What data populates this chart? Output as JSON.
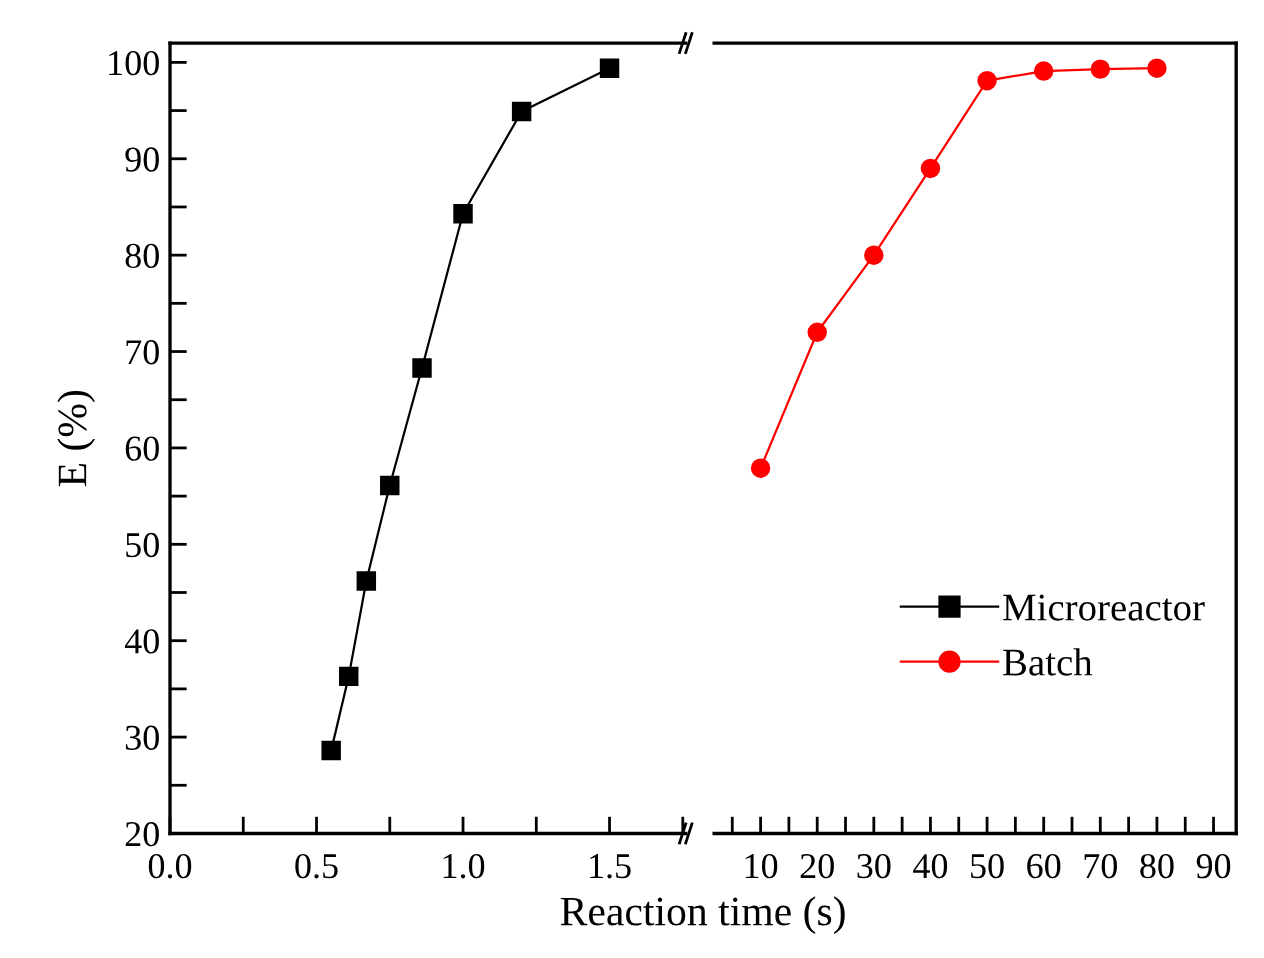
{
  "chart_data": [
    {
      "type": "line",
      "ylabel": "E (%)",
      "xlabel": "Reaction time (s)",
      "xlim": [
        0,
        1.76
      ],
      "ylim": [
        20,
        102
      ],
      "xticks": [
        {
          "value": 0,
          "label": "0.0"
        },
        {
          "value": 0.25,
          "label": null
        },
        0.5,
        {
          "value": 0.75,
          "label": null
        },
        {
          "value": 1,
          "label": "1.0"
        },
        {
          "value": 1.25,
          "label": null
        },
        1.5,
        {
          "value": 1.75,
          "label": null
        }
      ],
      "yticks": [
        20,
        {
          "value": 25,
          "label": null
        },
        30,
        {
          "value": 35,
          "label": null
        },
        40,
        {
          "value": 45,
          "label": null
        },
        50,
        {
          "value": 55,
          "label": null
        },
        60,
        {
          "value": 65,
          "label": null
        },
        70,
        {
          "value": 75,
          "label": null
        },
        80,
        {
          "value": 85,
          "label": null
        },
        90,
        {
          "value": 95,
          "label": null
        },
        100
      ],
      "marker": "square",
      "grid": false,
      "series": [
        {
          "name": "Microreactor",
          "color": "#000000",
          "x": [
            0.55,
            0.61,
            0.67,
            0.75,
            0.86,
            1.0,
            1.2,
            1.5
          ],
          "values": [
            28.6,
            36.3,
            46.2,
            56.1,
            68.3,
            84.3,
            94.9,
            99.4
          ]
        }
      ]
    },
    {
      "type": "line",
      "xlim": [
        1.8,
        94
      ],
      "ylim": [
        20,
        102
      ],
      "tick_labels": "x",
      "xticks": [
        {
          "value": 5,
          "label": null
        },
        10,
        {
          "value": 15,
          "label": null
        },
        20,
        {
          "value": 25,
          "label": null
        },
        30,
        {
          "value": 35,
          "label": null
        },
        40,
        {
          "value": 45,
          "label": null
        },
        50,
        {
          "value": 55,
          "label": null
        },
        60,
        {
          "value": 65,
          "label": null
        },
        70,
        {
          "value": 75,
          "label": null
        },
        80,
        {
          "value": 85,
          "label": null
        },
        90
      ],
      "marker": "circle",
      "grid": false,
      "legend": "lower right",
      "series": [
        {
          "name": "Batch",
          "color": "#ff0000",
          "x": [
            10,
            20,
            30,
            40,
            50,
            60,
            70,
            80
          ],
          "values": [
            57.9,
            72.0,
            80.0,
            89.0,
            98.1,
            99.1,
            99.3,
            99.4
          ]
        }
      ]
    }
  ]
}
